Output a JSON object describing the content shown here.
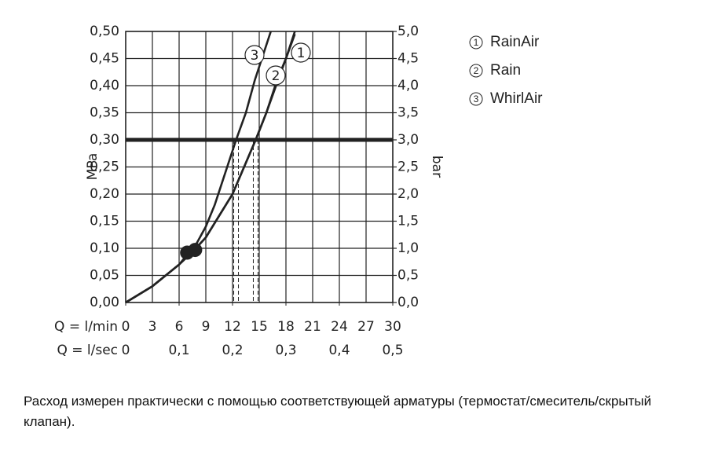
{
  "chart_data": {
    "type": "line",
    "ylabel": "MPa",
    "y2label": "bar",
    "xlabel": "Q = l/min",
    "x2label": "Q = l/sec",
    "xlim": [
      0,
      30
    ],
    "xticks": [
      0,
      3,
      6,
      9,
      12,
      15,
      18,
      21,
      24,
      27,
      30
    ],
    "x2lim": [
      0,
      0.5
    ],
    "x2ticks": [
      0,
      {
        "value": 0.1,
        "label": "0,1"
      },
      {
        "value": 0.2,
        "label": "0,2"
      },
      {
        "value": 0.3,
        "label": "0,3"
      },
      {
        "value": 0.4,
        "label": "0,4"
      },
      {
        "value": 0.5,
        "label": "0,5"
      }
    ],
    "ylim": [
      0,
      0.5
    ],
    "yticks": [
      {
        "value": 0,
        "label": "0,00"
      },
      {
        "value": 0.05,
        "label": "0,05"
      },
      {
        "value": 0.1,
        "label": "0,10"
      },
      {
        "value": 0.15,
        "label": "0,15"
      },
      {
        "value": 0.2,
        "label": "0,20"
      },
      {
        "value": 0.25,
        "label": "0,25"
      },
      {
        "value": 0.3,
        "label": "0,30"
      },
      {
        "value": 0.35,
        "label": "0,35"
      },
      {
        "value": 0.4,
        "label": "0,40"
      },
      {
        "value": 0.45,
        "label": "0,45"
      },
      {
        "value": 0.5,
        "label": "0,50"
      }
    ],
    "y2lim": [
      0,
      5
    ],
    "y2ticks": [
      {
        "value": 0,
        "label": "0,0"
      },
      {
        "value": 0.5,
        "label": "0,5"
      },
      {
        "value": 1,
        "label": "1,0"
      },
      {
        "value": 1.5,
        "label": "1,5"
      },
      {
        "value": 2,
        "label": "2,0"
      },
      {
        "value": 2.5,
        "label": "2,5"
      },
      {
        "value": 3,
        "label": "3,0"
      },
      {
        "value": 3.5,
        "label": "3,5"
      },
      {
        "value": 4,
        "label": "4,0"
      },
      {
        "value": 4.5,
        "label": "4,5"
      },
      {
        "value": 5,
        "label": "5,0"
      }
    ],
    "grid": true,
    "color": "#222222",
    "series": [
      {
        "name": "RainAir",
        "marker": "1",
        "x": [
          0,
          3,
          6,
          7.6,
          9,
          10.5,
          12,
          13.3,
          14.6,
          15.8,
          17,
          18,
          19
        ],
        "values": [
          0,
          0.03,
          0.07,
          0.095,
          0.12,
          0.16,
          0.2,
          0.25,
          0.3,
          0.35,
          0.41,
          0.45,
          0.5
        ]
      },
      {
        "name": "Rain",
        "marker": "2",
        "x": [
          0,
          3,
          6,
          7.6,
          9,
          10.5,
          12,
          13.3,
          14.6,
          15.8,
          17,
          18,
          19
        ],
        "values": [
          0,
          0.03,
          0.07,
          0.095,
          0.12,
          0.16,
          0.2,
          0.25,
          0.3,
          0.35,
          0.405,
          0.45,
          0.495
        ]
      },
      {
        "name": "WhirlAir",
        "marker": "3",
        "x": [
          0,
          3,
          6,
          7,
          8,
          9,
          10,
          11,
          12.4,
          13.5,
          14.5,
          15.5,
          16.3
        ],
        "values": [
          0,
          0.03,
          0.07,
          0.09,
          0.11,
          0.14,
          0.18,
          0.23,
          0.3,
          0.35,
          0.41,
          0.46,
          0.5
        ]
      }
    ],
    "points": {
      "x": [
        6.9,
        7.8
      ],
      "values": [
        0.092,
        0.097
      ]
    },
    "hline": 0.3,
    "vlines": [
      12.4,
      14.6
    ],
    "footnote": "Расход измерен практически с помощью соответствующей арматуры (термостат/смеситель/скрытый клапан)."
  }
}
